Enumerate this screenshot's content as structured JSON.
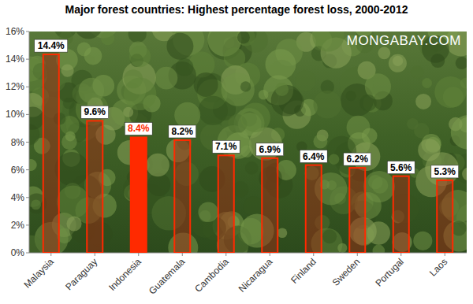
{
  "chart_data": {
    "type": "bar",
    "title": "Major forest countries: Highest percentage forest loss, 2000-2012",
    "annotation": "MONGABAY.COM",
    "categories": [
      "Malaysia",
      "Paraguay",
      "Indonesia",
      "Guatemala",
      "Cambodia",
      "Nicaragua",
      "Finland",
      "Sweden",
      "Portugal",
      "Laos"
    ],
    "values": [
      14.4,
      9.6,
      8.4,
      8.2,
      7.1,
      6.9,
      6.4,
      6.2,
      5.6,
      5.3
    ],
    "value_labels": [
      "14.4%",
      "9.6%",
      "8.4%",
      "8.2%",
      "7.1%",
      "6.9%",
      "6.4%",
      "6.2%",
      "5.6%",
      "5.3%"
    ],
    "colors": [
      "rgba(170,40,20,0.45)",
      "rgba(170,40,20,0.45)",
      "#ff2a00",
      "rgba(170,40,20,0.45)",
      "rgba(170,40,20,0.45)",
      "rgba(170,40,20,0.45)",
      "rgba(170,40,20,0.45)",
      "rgba(170,40,20,0.45)",
      "rgba(170,40,20,0.45)",
      "rgba(170,40,20,0.45)"
    ],
    "ylim": [
      0,
      16
    ],
    "yticks": [
      {
        "value": 0,
        "label": "0%"
      },
      {
        "value": 2,
        "label": "2%"
      },
      {
        "value": 4,
        "label": "4%"
      },
      {
        "value": 6,
        "label": "6%"
      },
      {
        "value": 8,
        "label": "8%"
      },
      {
        "value": 10,
        "label": "10%"
      },
      {
        "value": 12,
        "label": "12%"
      },
      {
        "value": 14,
        "label": "14%"
      },
      {
        "value": 16,
        "label": "16%"
      }
    ],
    "grid": false,
    "data_labels": true
  }
}
